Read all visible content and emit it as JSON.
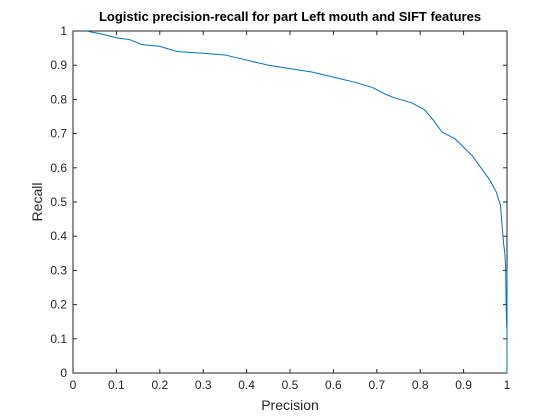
{
  "chart_data": {
    "type": "line",
    "title": "Logistic precision-recall for part Left mouth and SIFT features",
    "xlabel": "Precision",
    "ylabel": "Recall",
    "xlim": [
      0,
      1
    ],
    "ylim": [
      0,
      1
    ],
    "xticks": [
      0,
      0.1,
      0.2,
      0.3,
      0.4,
      0.5,
      0.6,
      0.7,
      0.8,
      0.9,
      1
    ],
    "yticks": [
      0,
      0.1,
      0.2,
      0.3,
      0.4,
      0.5,
      0.6,
      0.7,
      0.8,
      0.9,
      1
    ],
    "xtick_labels": [
      "0",
      "0.1",
      "0.2",
      "0.3",
      "0.4",
      "0.5",
      "0.6",
      "0.7",
      "0.8",
      "0.9",
      "1"
    ],
    "ytick_labels": [
      "0",
      "0.1",
      "0.2",
      "0.3",
      "0.4",
      "0.5",
      "0.6",
      "0.7",
      "0.8",
      "0.9",
      "1"
    ],
    "grid": false,
    "legend": "none",
    "line_color": "#0072bd",
    "series": [
      {
        "x": [
          0.03,
          0.07,
          0.1,
          0.13,
          0.16,
          0.2,
          0.24,
          0.3,
          0.35,
          0.4,
          0.45,
          0.5,
          0.55,
          0.6,
          0.65,
          0.69,
          0.72,
          0.74,
          0.78,
          0.81,
          0.83,
          0.85,
          0.88,
          0.9,
          0.92,
          0.94,
          0.96,
          0.975,
          0.985,
          0.988,
          0.99,
          0.992,
          0.995,
          0.997,
          0.998,
          0.999,
          1.0,
          1.0,
          1.0
        ],
        "y": [
          1.0,
          0.99,
          0.98,
          0.975,
          0.96,
          0.955,
          0.94,
          0.935,
          0.93,
          0.915,
          0.9,
          0.89,
          0.88,
          0.865,
          0.85,
          0.835,
          0.815,
          0.805,
          0.79,
          0.77,
          0.74,
          0.705,
          0.685,
          0.66,
          0.635,
          0.6,
          0.565,
          0.53,
          0.49,
          0.44,
          0.41,
          0.38,
          0.35,
          0.3,
          0.2,
          0.15,
          0.12,
          0.3,
          0.0
        ]
      }
    ]
  }
}
